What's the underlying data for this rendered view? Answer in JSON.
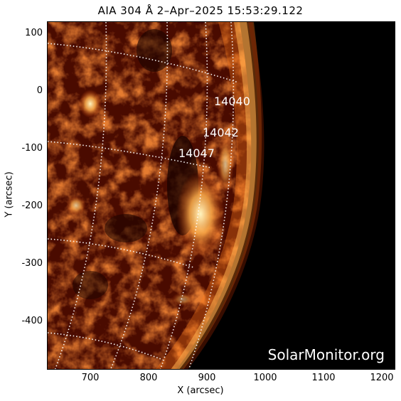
{
  "title": "AIA 304 Å  2–Apr–2025 15:53:29.122",
  "axes": {
    "xlabel": "X (arcsec)",
    "ylabel": "Y (arcsec)",
    "x_ticks": [
      "700",
      "800",
      "900",
      "1000",
      "1100",
      "1200"
    ],
    "y_ticks": [
      "100",
      "0",
      "-100",
      "-200",
      "-300",
      "-400"
    ]
  },
  "regions": [
    {
      "number": "14040"
    },
    {
      "number": "14042"
    },
    {
      "number": "14047"
    }
  ],
  "watermark": "SolarMonitor.org",
  "colors": {
    "emission_bright": "#ffe08a",
    "emission_mid": "#c63a08",
    "emission_dark": "#3a0800",
    "space": "#000000"
  }
}
